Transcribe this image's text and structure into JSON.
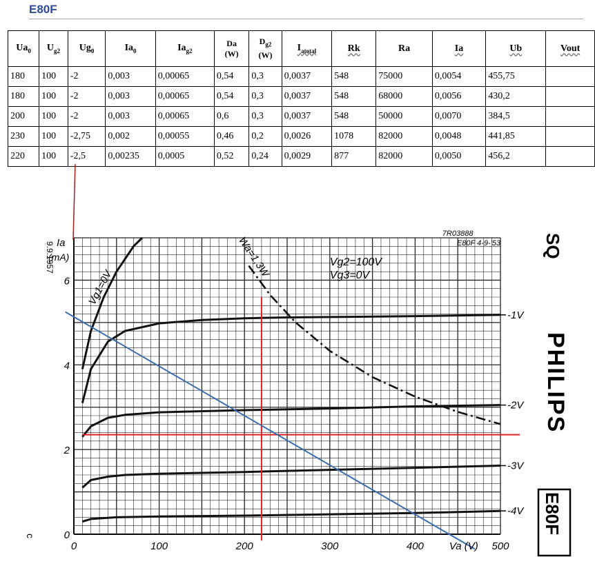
{
  "doc": {
    "title": "E80F"
  },
  "table": {
    "headers": [
      {
        "main": "Ua",
        "sub": "0",
        "wavy": false
      },
      {
        "main": "U",
        "sub": "g2",
        "wavy": false
      },
      {
        "main": "Ug",
        "sub": "0",
        "wavy": false
      },
      {
        "main": "Ia",
        "sub": "0",
        "wavy": false
      },
      {
        "main": "Ia",
        "sub": "g2",
        "wavy": false
      },
      {
        "main": "Da",
        "sub": "(W)",
        "wavy": false,
        "stack": true
      },
      {
        "main": "D",
        "sub": "g2",
        "line2": "(W)",
        "wavy": false,
        "stack": true
      },
      {
        "main": "I",
        "sub": "atotal",
        "wavy": true
      },
      {
        "main": "Rk",
        "sub": "",
        "wavy": true
      },
      {
        "main": "Ra",
        "sub": "",
        "wavy": false
      },
      {
        "main": "Ia",
        "sub": "",
        "wavy": true
      },
      {
        "main": "Ub",
        "sub": "",
        "wavy": true
      },
      {
        "main": "Vout",
        "sub": "",
        "wavy": true
      }
    ],
    "rows": [
      [
        "180",
        "100",
        "-2",
        "0,003",
        "0,00065",
        "0,54",
        "0,3",
        "0,0037",
        "548",
        "75000",
        "0,0054",
        "455,75",
        ""
      ],
      [
        "180",
        "100",
        "-2",
        "0,003",
        "0,00065",
        "0,54",
        "0,3",
        "0,0037",
        "548",
        "68000",
        "0,0056",
        "430,2",
        ""
      ],
      [
        "200",
        "100",
        "-2",
        "0,003",
        "0,00065",
        "0,6",
        "0,3",
        "0,0037",
        "548",
        "50000",
        "0,0070",
        "384,5",
        ""
      ],
      [
        "230",
        "100",
        "-2,75",
        "0,002",
        "0,00055",
        "0,46",
        "0,2",
        "0,0026",
        "1078",
        "82000",
        "0,0048",
        "441,85",
        ""
      ],
      [
        "220",
        "100",
        "-2,5",
        "0,00235",
        "0,0005",
        "0,52",
        "0,24",
        "0,0029",
        "877",
        "82000",
        "0,0050",
        "456,2",
        ""
      ]
    ]
  },
  "chart_data": {
    "type": "line",
    "xlabel": "Va (V)",
    "ylabel": "Ia (mA)",
    "xlim": [
      0,
      500
    ],
    "ylim": [
      0,
      7
    ],
    "x_ticks": [
      "0",
      "100",
      "200",
      "300",
      "400",
      "500"
    ],
    "y_ticks": [
      "0",
      "2",
      "4",
      "6"
    ],
    "grid": true,
    "conditions": [
      "Vg2=100V",
      "Vg3=0V"
    ],
    "series": [
      {
        "name": "Vg1=0V",
        "x": [
          10,
          20,
          35,
          50,
          70,
          80
        ],
        "y": [
          3.9,
          4.8,
          5.6,
          6.2,
          6.8,
          7.0
        ]
      },
      {
        "name": "",
        "x": [
          10,
          20,
          40,
          60,
          100,
          150,
          200,
          250,
          300,
          400,
          500
        ],
        "y": [
          3.1,
          3.9,
          4.55,
          4.8,
          4.98,
          5.06,
          5.1,
          5.12,
          5.13,
          5.15,
          5.18
        ]
      },
      {
        "name": "-2V",
        "x": [
          10,
          20,
          40,
          60,
          100,
          200,
          300,
          400,
          500
        ],
        "y": [
          2.3,
          2.55,
          2.75,
          2.82,
          2.88,
          2.93,
          2.97,
          3.02,
          3.05
        ]
      },
      {
        "name": "-3V",
        "x": [
          10,
          20,
          40,
          60,
          100,
          200,
          300,
          400,
          500
        ],
        "y": [
          1.1,
          1.28,
          1.36,
          1.4,
          1.43,
          1.47,
          1.52,
          1.57,
          1.62
        ]
      },
      {
        "name": "-4V",
        "x": [
          10,
          20,
          50,
          100,
          200,
          300,
          400,
          500
        ],
        "y": [
          0.3,
          0.36,
          0.4,
          0.42,
          0.44,
          0.47,
          0.5,
          0.55
        ]
      }
    ],
    "curve_labels": [
      "-1V",
      "-2V",
      "-3V",
      "-4V"
    ],
    "max_dissipation": {
      "name": "Wa=1,3W",
      "x": [
        205,
        230,
        260,
        300,
        350,
        400,
        450,
        500
      ],
      "y": [
        6.34,
        5.65,
        5.0,
        4.33,
        3.71,
        3.25,
        2.89,
        2.6
      ]
    },
    "load_line": {
      "x": [
        -10,
        470
      ],
      "y": [
        5.25,
        -0.35
      ]
    },
    "operating_point": {
      "x": 220,
      "y": 2.35
    },
    "annotations": {
      "date_side": "9.9.1957",
      "ref_code": "7R03888",
      "ref_date": "E80F 4-9-'53",
      "brand": "PHILIPS",
      "corner": "SQ",
      "type_box": "E80F"
    }
  }
}
